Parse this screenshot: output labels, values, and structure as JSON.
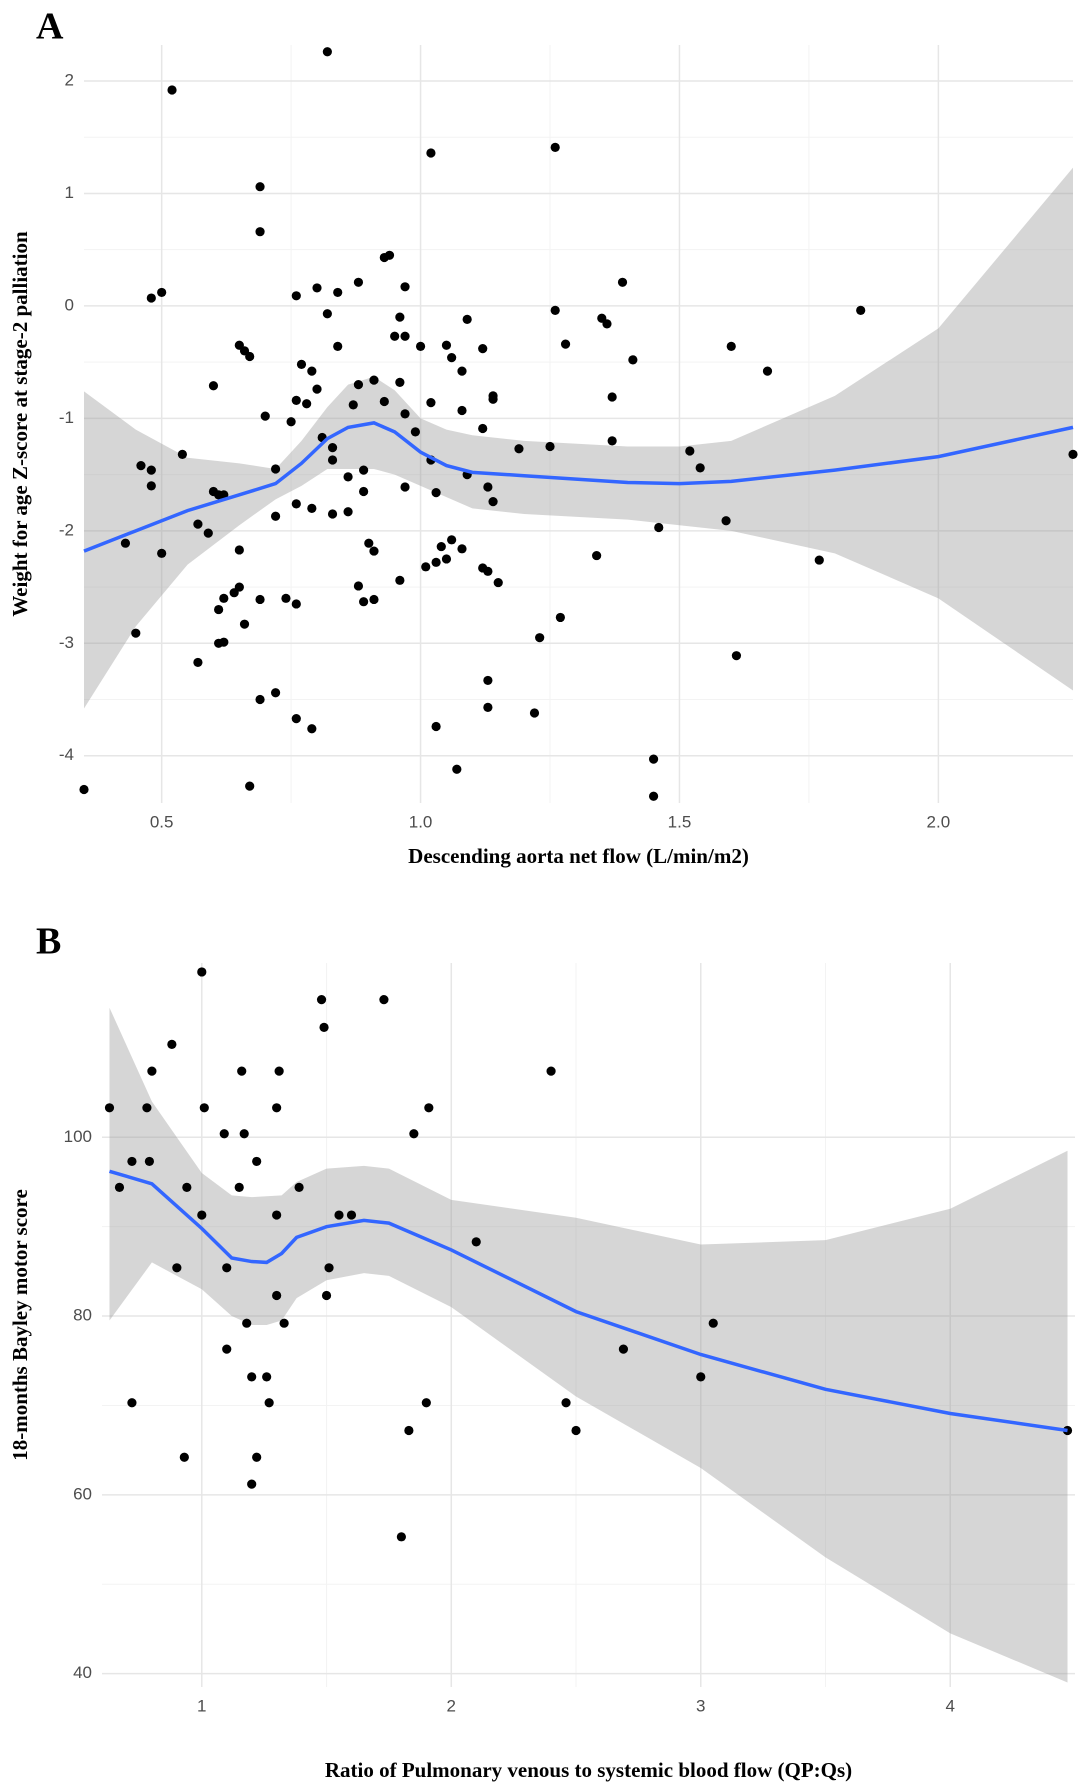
{
  "chart_data": [
    {
      "type": "scatter",
      "panel_label": "A",
      "x_label": "Descending aorta net flow (L/min/m2)",
      "y_label": "Weight for age Z-score at stage-2 palliation",
      "xlim": [
        0.35,
        2.26
      ],
      "ylim": [
        -4.42,
        2.32
      ],
      "xticks": [
        0.5,
        {
          "value": 1,
          "label": "1.0"
        },
        1.5,
        {
          "value": 2,
          "label": "2.0"
        }
      ],
      "yticks": [
        -4,
        -3,
        -2,
        -1,
        0,
        1,
        2
      ],
      "grid": true,
      "color": "#000000",
      "x": [
        0.35,
        0.52,
        0.82,
        0.48,
        0.5,
        0.69,
        0.69,
        1.02,
        1.26,
        0.94,
        0.93,
        0.88,
        0.84,
        0.8,
        0.76,
        0.97,
        1.39,
        1.85,
        1.26,
        1.35,
        1.36,
        1.09,
        0.96,
        0.82,
        0.95,
        0.97,
        1.0,
        1.05,
        1.12,
        1.28,
        0.84,
        0.65,
        0.66,
        0.67,
        1.06,
        1.41,
        1.6,
        1.67,
        0.77,
        0.79,
        1.08,
        0.6,
        0.8,
        0.88,
        0.91,
        0.96,
        1.14,
        1.14,
        1.37,
        0.76,
        0.78,
        0.87,
        0.93,
        1.02,
        0.97,
        1.08,
        0.7,
        0.75,
        1.12,
        0.81,
        0.99,
        0.83,
        1.25,
        1.19,
        1.37,
        0.54,
        1.52,
        2.26,
        0.83,
        1.02,
        0.46,
        0.48,
        0.72,
        0.89,
        1.54,
        1.09,
        0.86,
        0.48,
        1.13,
        0.97,
        0.6,
        0.61,
        0.62,
        1.03,
        0.89,
        1.14,
        0.76,
        0.79,
        0.83,
        0.86,
        0.72,
        0.57,
        0.59,
        1.59,
        1.46,
        0.43,
        1.06,
        1.04,
        0.9,
        0.91,
        1.08,
        0.5,
        0.65,
        1.34,
        1.77,
        1.05,
        1.03,
        1.01,
        1.12,
        1.13,
        1.15,
        0.96,
        0.88,
        0.65,
        0.64,
        0.62,
        0.74,
        0.69,
        0.76,
        0.91,
        0.89,
        0.61,
        1.27,
        0.66,
        0.45,
        1.23,
        0.61,
        0.62,
        1.61,
        0.57,
        1.13,
        0.72,
        0.69,
        1.13,
        1.22,
        0.76,
        0.79,
        1.03,
        1.07,
        1.45,
        0.67,
        1.45
      ],
      "y": [
        -4.3,
        1.92,
        2.26,
        0.07,
        0.12,
        1.06,
        0.66,
        1.36,
        1.41,
        0.45,
        0.43,
        0.21,
        0.12,
        0.16,
        0.09,
        0.17,
        0.21,
        -0.04,
        -0.04,
        -0.11,
        -0.16,
        -0.12,
        -0.1,
        -0.07,
        -0.27,
        -0.27,
        -0.36,
        -0.35,
        -0.38,
        -0.34,
        -0.36,
        -0.35,
        -0.4,
        -0.45,
        -0.46,
        -0.48,
        -0.36,
        -0.58,
        -0.52,
        -0.58,
        -0.58,
        -0.71,
        -0.74,
        -0.7,
        -0.66,
        -0.68,
        -0.8,
        -0.83,
        -0.81,
        -0.84,
        -0.87,
        -0.88,
        -0.85,
        -0.86,
        -0.96,
        -0.93,
        -0.98,
        -1.03,
        -1.09,
        -1.17,
        -1.12,
        -1.26,
        -1.25,
        -1.27,
        -1.2,
        -1.32,
        -1.29,
        -1.32,
        -1.37,
        -1.37,
        -1.42,
        -1.46,
        -1.45,
        -1.46,
        -1.44,
        -1.5,
        -1.52,
        -1.6,
        -1.61,
        -1.61,
        -1.65,
        -1.68,
        -1.68,
        -1.66,
        -1.65,
        -1.74,
        -1.76,
        -1.8,
        -1.85,
        -1.83,
        -1.87,
        -1.94,
        -2.02,
        -1.91,
        -1.97,
        -2.11,
        -2.08,
        -2.14,
        -2.11,
        -2.18,
        -2.16,
        -2.2,
        -2.17,
        -2.22,
        -2.26,
        -2.25,
        -2.28,
        -2.32,
        -2.33,
        -2.36,
        -2.46,
        -2.44,
        -2.49,
        -2.5,
        -2.55,
        -2.6,
        -2.6,
        -2.61,
        -2.65,
        -2.61,
        -2.63,
        -2.7,
        -2.77,
        -2.83,
        -2.91,
        -2.95,
        -3.0,
        -2.99,
        -3.11,
        -3.17,
        -3.33,
        -3.44,
        -3.5,
        -3.57,
        -3.62,
        -3.67,
        -3.76,
        -3.74,
        -4.12,
        -4.03,
        -4.27,
        -4.36
      ],
      "smooth": {
        "color": "#3366ff",
        "band_color": "#999999",
        "x": [
          0.35,
          0.45,
          0.55,
          0.65,
          0.72,
          0.77,
          0.82,
          0.86,
          0.91,
          0.95,
          1.0,
          1.05,
          1.1,
          1.2,
          1.4,
          1.5,
          1.6,
          1.8,
          2.0,
          2.26
        ],
        "y": [
          -2.18,
          -2.0,
          -1.82,
          -1.68,
          -1.58,
          -1.4,
          -1.18,
          -1.08,
          -1.04,
          -1.12,
          -1.3,
          -1.42,
          -1.48,
          -1.51,
          -1.57,
          -1.58,
          -1.56,
          -1.46,
          -1.34,
          -1.08
        ],
        "ymax": [
          -0.76,
          -1.1,
          -1.35,
          -1.4,
          -1.45,
          -1.2,
          -0.9,
          -0.7,
          -0.63,
          -0.75,
          -1.0,
          -1.1,
          -1.15,
          -1.2,
          -1.25,
          -1.25,
          -1.2,
          -0.8,
          -0.2,
          1.23
        ],
        "ymin": [
          -3.58,
          -2.85,
          -2.3,
          -1.95,
          -1.72,
          -1.6,
          -1.45,
          -1.45,
          -1.45,
          -1.5,
          -1.6,
          -1.7,
          -1.8,
          -1.85,
          -1.9,
          -1.95,
          -2.0,
          -2.2,
          -2.6,
          -3.42
        ]
      }
    },
    {
      "type": "scatter",
      "panel_label": "B",
      "x_label": "Ratio of Pulmonary venous to systemic blood flow (QP:Qs)",
      "y_label": "18-months Bayley motor score",
      "xlim": [
        0.6,
        4.5
      ],
      "ylim": [
        38.5,
        119.5
      ],
      "xticks": [
        1,
        2,
        3,
        4
      ],
      "yticks": [
        40,
        60,
        80,
        100
      ],
      "grid": true,
      "color": "#000000",
      "x": [
        1.0,
        1.48,
        1.73,
        1.49,
        0.88,
        0.8,
        1.16,
        1.31,
        2.4,
        0.63,
        0.78,
        1.01,
        1.3,
        1.91,
        1.09,
        1.17,
        1.85,
        0.72,
        0.79,
        1.22,
        0.67,
        0.94,
        1.15,
        1.39,
        1.0,
        1.3,
        1.55,
        1.6,
        2.1,
        0.9,
        1.1,
        1.51,
        1.3,
        1.5,
        1.18,
        1.33,
        3.05,
        1.1,
        2.69,
        1.2,
        1.26,
        3.0,
        0.72,
        1.27,
        1.9,
        2.46,
        0.93,
        1.22,
        1.83,
        2.5,
        4.47,
        1.2,
        1.8
      ],
      "y": [
        118.5,
        115.4,
        115.4,
        112.3,
        110.4,
        107.4,
        107.4,
        107.4,
        107.4,
        103.3,
        103.3,
        103.3,
        103.3,
        103.3,
        100.4,
        100.4,
        100.4,
        97.3,
        97.3,
        97.3,
        94.4,
        94.4,
        94.4,
        94.4,
        91.3,
        91.3,
        91.3,
        91.3,
        88.3,
        85.4,
        85.4,
        85.4,
        82.3,
        82.3,
        79.2,
        79.2,
        79.2,
        76.3,
        76.3,
        73.2,
        73.2,
        73.2,
        70.3,
        70.3,
        70.3,
        70.3,
        64.2,
        64.2,
        67.2,
        67.2,
        67.2,
        61.2,
        55.3
      ],
      "smooth": {
        "color": "#3366ff",
        "band_color": "#999999",
        "x": [
          0.63,
          0.8,
          1.0,
          1.12,
          1.2,
          1.26,
          1.32,
          1.38,
          1.5,
          1.65,
          1.75,
          2.0,
          2.5,
          3.0,
          3.5,
          4.0,
          4.47
        ],
        "y": [
          96.2,
          94.8,
          89.8,
          86.5,
          86.1,
          86.0,
          87.0,
          88.8,
          90.0,
          90.7,
          90.4,
          87.4,
          80.5,
          75.7,
          71.8,
          69.1,
          67.2
        ],
        "ymax": [
          114.5,
          104,
          96,
          93.5,
          93.3,
          93.4,
          93.5,
          95,
          96.5,
          96.8,
          96.5,
          93,
          91,
          88,
          88.5,
          92,
          98.5
        ],
        "ymin": [
          79.5,
          86,
          83,
          80,
          79,
          79,
          79.5,
          82,
          84,
          84.8,
          84.5,
          81,
          71,
          63,
          53,
          44.5,
          39
        ]
      }
    }
  ]
}
